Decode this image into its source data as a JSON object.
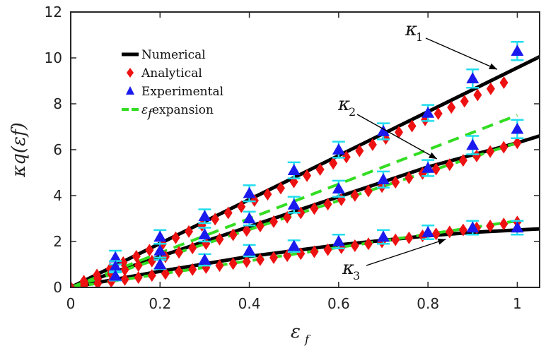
{
  "chart_data": {
    "type": "line",
    "xlabel": "ε",
    "xlabel_sub": "f",
    "ylabel": "κq(εf)",
    "xlim": [
      0,
      1.05
    ],
    "ylim": [
      0,
      12
    ],
    "xticks": [
      0,
      0.2,
      0.4,
      0.6,
      0.8,
      1
    ],
    "xtick_labels": [
      "0",
      "0.2",
      "0.4",
      "0.6",
      "0.8",
      "1"
    ],
    "yticks": [
      0,
      2,
      4,
      6,
      8,
      10,
      12
    ],
    "ytick_labels": [
      "0",
      "2",
      "4",
      "6",
      "8",
      "10",
      "12"
    ],
    "legend": {
      "position": "top-left",
      "entries": [
        {
          "label": "Numerical",
          "style": "line",
          "color": "#000000"
        },
        {
          "label": "Analytical",
          "style": "diamond",
          "color": "#ee1111"
        },
        {
          "label": "Experimental",
          "style": "triangle",
          "color": "#1a1aee"
        },
        {
          "label_math": "ε",
          "label_sub": "f",
          "label_rest": " expansion",
          "style": "dashed",
          "color": "#33dd22"
        }
      ]
    },
    "series": [
      {
        "name": "Numerical κ1",
        "kind": "line",
        "color": "#000000",
        "x": [
          0,
          1.05
        ],
        "y": [
          0,
          10.05
        ]
      },
      {
        "name": "Numerical κ2",
        "kind": "line",
        "color": "#000000",
        "x": [
          0,
          0.2,
          0.4,
          0.6,
          0.8,
          1.0,
          1.05
        ],
        "y": [
          0,
          1.35,
          2.65,
          3.95,
          5.25,
          6.3,
          6.6
        ]
      },
      {
        "name": "Numerical κ3",
        "kind": "line",
        "color": "#000000",
        "x": [
          0,
          0.2,
          0.4,
          0.6,
          0.8,
          0.9,
          1.0,
          1.05
        ],
        "y": [
          0,
          0.7,
          1.35,
          1.85,
          2.25,
          2.4,
          2.5,
          2.55
        ]
      },
      {
        "name": "Expansion κ1",
        "kind": "dashed",
        "color": "#33dd22",
        "x": [
          0,
          1.0
        ],
        "y": [
          0,
          7.5
        ]
      },
      {
        "name": "Expansion κ2",
        "kind": "dashed",
        "color": "#33dd22",
        "x": [
          0,
          1.0
        ],
        "y": [
          0,
          6.3
        ]
      },
      {
        "name": "Expansion κ3",
        "kind": "dashed",
        "color": "#33dd22",
        "x": [
          0,
          1.0
        ],
        "y": [
          0,
          2.9
        ]
      },
      {
        "name": "Analytical κ1",
        "kind": "diamond",
        "color": "#ee1111",
        "x_range": [
          0.0,
          0.97,
          34
        ],
        "slope": 9.2
      },
      {
        "name": "Analytical κ2",
        "kind": "diamond",
        "color": "#ee1111",
        "x_range": [
          0.0,
          1.0,
          34
        ],
        "slope": 6.3
      },
      {
        "name": "Analytical κ3",
        "kind": "diamond",
        "color": "#ee1111",
        "x_range": [
          0.0,
          1.0,
          34
        ],
        "slope": 2.85
      }
    ],
    "experimental": {
      "color": "#1a1aee",
      "errbar_color": "#22ddee",
      "x": [
        0.1,
        0.2,
        0.3,
        0.4,
        0.5,
        0.6,
        0.7,
        0.8,
        0.9,
        1.0
      ],
      "k1": [
        1.3,
        2.2,
        3.1,
        4.1,
        5.1,
        6.0,
        6.8,
        7.6,
        9.1,
        10.3
      ],
      "k1_err": [
        0.3,
        0.3,
        0.3,
        0.35,
        0.35,
        0.35,
        0.35,
        0.35,
        0.4,
        0.4
      ],
      "k2": [
        0.9,
        1.6,
        2.3,
        3.0,
        3.6,
        4.3,
        4.7,
        5.2,
        6.2,
        6.9
      ],
      "k2_err": [
        0.25,
        0.3,
        0.3,
        0.3,
        0.35,
        0.35,
        0.35,
        0.35,
        0.4,
        0.4
      ],
      "k3": [
        0.5,
        1.0,
        1.2,
        1.6,
        1.8,
        2.0,
        2.2,
        2.4,
        2.6,
        2.6
      ],
      "k3_err": [
        0.2,
        0.2,
        0.25,
        0.25,
        0.25,
        0.3,
        0.3,
        0.3,
        0.3,
        0.3
      ]
    },
    "annotations": [
      {
        "text": "κ",
        "sub": "1",
        "arrow_to": [
          0.955,
          9.5
        ]
      },
      {
        "text": "κ",
        "sub": "2",
        "arrow_to": [
          0.82,
          5.6
        ]
      },
      {
        "text": "κ",
        "sub": "3",
        "arrow_to": [
          0.84,
          2.1
        ]
      }
    ]
  }
}
